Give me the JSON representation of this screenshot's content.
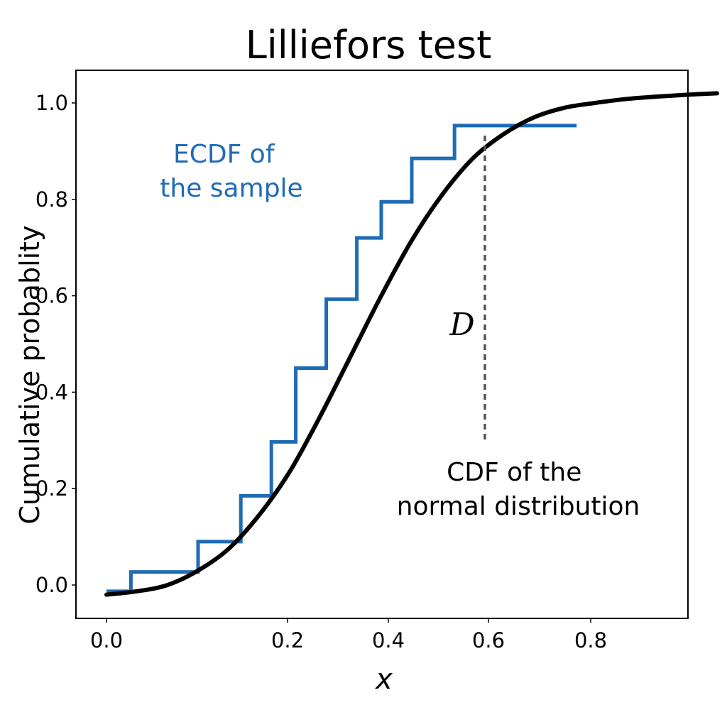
{
  "chart_data": {
    "type": "line",
    "title": "Lilliefors test",
    "xlabel": "x",
    "ylabel": "Cumulative probablity",
    "xlim": [
      -0.03,
      1.05
    ],
    "ylim": [
      -0.07,
      1.07
    ],
    "x_ticks": [
      {
        "value": 0.0,
        "label": "0.0"
      },
      {
        "value": 0.2,
        "label": "0.2"
      },
      {
        "value": 0.4,
        "label": "0.4"
      },
      {
        "value": 0.6,
        "label": "0.6"
      },
      {
        "value": 0.8,
        "label": "0.8"
      }
    ],
    "y_ticks": [
      {
        "value": 0.0,
        "label": "0.0"
      },
      {
        "value": 0.2,
        "label": "0.2"
      },
      {
        "value": 0.4,
        "label": "0.4"
      },
      {
        "value": 0.6,
        "label": "0.6"
      },
      {
        "value": 0.8,
        "label": "0.8"
      },
      {
        "value": 1.0,
        "label": "1.0"
      }
    ],
    "grid": false,
    "series": [
      {
        "name": "ECDF of the sample",
        "kind": "step",
        "color": "#1f6bb5",
        "x": [
          0.0,
          0.04,
          0.15,
          0.22,
          0.27,
          0.31,
          0.36,
          0.41,
          0.45,
          0.5,
          0.57,
          0.7,
          0.77
        ],
        "y": [
          -0.013,
          0.027,
          0.09,
          0.185,
          0.297,
          0.45,
          0.593,
          0.72,
          0.795,
          0.885,
          0.953,
          0.953,
          0.953
        ]
      },
      {
        "name": "CDF of the normal distribution",
        "kind": "curve",
        "color": "#000000",
        "x": [
          0.0,
          0.05,
          0.1,
          0.15,
          0.2,
          0.25,
          0.3,
          0.35,
          0.4,
          0.45,
          0.5,
          0.55,
          0.6,
          0.65,
          0.7,
          0.75,
          0.8,
          0.85,
          0.9,
          0.95,
          1.0
        ],
        "y": [
          -0.02,
          -0.013,
          0.0,
          0.03,
          0.075,
          0.145,
          0.235,
          0.35,
          0.475,
          0.6,
          0.715,
          0.81,
          0.885,
          0.935,
          0.97,
          0.99,
          1.0,
          1.008,
          1.013,
          1.017,
          1.02
        ]
      }
    ],
    "annotations": [
      {
        "id": "ecdf",
        "lines": [
          "ECDF of",
          "the sample"
        ],
        "color": "#1f6bb5"
      },
      {
        "id": "cdf",
        "lines": [
          "CDF of the",
          "normal distribution"
        ],
        "color": "#000000"
      },
      {
        "id": "d",
        "text": "D",
        "x": 0.63,
        "y_from": 0.31,
        "y_to": 0.95
      }
    ]
  }
}
